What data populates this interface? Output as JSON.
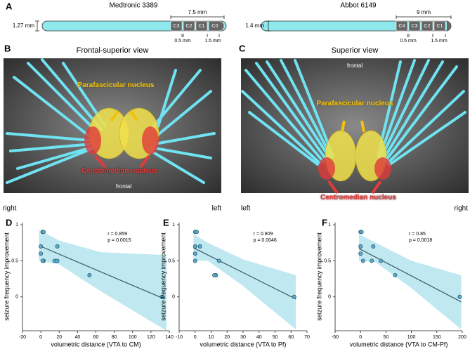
{
  "panel_labels": [
    "A",
    "B",
    "C",
    "D",
    "E",
    "F"
  ],
  "electrodes": [
    {
      "name": "Medtronic 3389",
      "diameter": "1.27 mm",
      "span": "7.5 mm",
      "spacing": "0.5 mm",
      "contact": "1.5 mm",
      "contacts": [
        "C3",
        "C2",
        "C1",
        "C0"
      ]
    },
    {
      "name": "Abbot 6149",
      "diameter": "1.4 mm",
      "span": "9 mm",
      "spacing": "0.5 mm",
      "contact": "1.5 mm",
      "contacts": [
        "C4",
        "C3",
        "C2",
        "C1"
      ]
    }
  ],
  "views": [
    {
      "title": "Frontal-superior view",
      "nucleus_top": "Parafascicular nucleus",
      "nucleus_bottom": "Centromedian nucleus",
      "orientation": "frontal",
      "left_label": "right",
      "right_label": "left"
    },
    {
      "title": "Superior view",
      "nucleus_top": "Parafascicular nucleus",
      "nucleus_bottom": "Centromedian nucleus",
      "orientation": "frontal",
      "left_label": "left",
      "right_label": "right"
    }
  ],
  "chart_data": [
    {
      "type": "scatter",
      "xlabel": "volumetric distance (VTA to CM)",
      "ylabel": "seizure frequency improvement",
      "x": [
        2,
        3,
        0,
        0,
        3,
        2,
        18,
        15,
        18,
        53,
        132
      ],
      "y": [
        0.9,
        0.9,
        0.7,
        0.6,
        0.5,
        0.5,
        0.7,
        0.5,
        0.5,
        0.3,
        0
      ],
      "xlim": [
        -20,
        140
      ],
      "ylim": [
        -0.47,
        1.03
      ],
      "xticks": [
        -20,
        0,
        20,
        40,
        60,
        80,
        100,
        120,
        140
      ],
      "yticks": [
        0,
        0.5,
        1
      ],
      "annotations": [
        "r = 0.859",
        "p = 0.0015"
      ],
      "color": "#5aaccd",
      "fit": {
        "x": [
          0,
          135
        ],
        "y": [
          0.7,
          -0.03
        ]
      },
      "band": {
        "x": [
          -2,
          20,
          65,
          137
        ],
        "upper": [
          0.93,
          0.78,
          0.62,
          0.58
        ],
        "lower": [
          0.5,
          0.45,
          0.08,
          -0.47
        ]
      }
    },
    {
      "type": "scatter",
      "xlabel": "volumetric distance (VTA to Pf)",
      "ylabel": "seizure frequency improvement",
      "x": [
        0,
        1,
        0,
        3,
        0,
        0,
        13,
        12,
        15,
        62
      ],
      "y": [
        0.9,
        0.9,
        0.7,
        0.7,
        0.6,
        0.5,
        0.3,
        0.3,
        0.5,
        0
      ],
      "xlim": [
        -10,
        70
      ],
      "ylim": [
        -0.47,
        1.03
      ],
      "xticks": [
        -10,
        0,
        10,
        20,
        30,
        40,
        50,
        60,
        70
      ],
      "yticks": [
        0,
        0.5,
        1
      ],
      "annotations": [
        "r = 0.809",
        "p = 0.0046"
      ],
      "color": "#5aaccd",
      "fit": {
        "x": [
          -1,
          63
        ],
        "y": [
          0.68,
          -0.03
        ]
      },
      "band": {
        "x": [
          -1,
          8,
          30,
          63
        ],
        "upper": [
          0.87,
          0.75,
          0.52,
          0.3
        ],
        "lower": [
          0.5,
          0.5,
          0.15,
          -0.45
        ]
      }
    },
    {
      "type": "scatter",
      "xlabel": "volumetric distance (VTA to CM-Pf)",
      "ylabel": "seizure frequency improvement",
      "x": [
        0,
        2,
        0,
        0,
        5,
        25,
        22,
        40,
        68,
        195
      ],
      "y": [
        0.9,
        0.9,
        0.7,
        0.6,
        0.5,
        0.7,
        0.5,
        0.5,
        0.3,
        0
      ],
      "xlim": [
        -50,
        200
      ],
      "ylim": [
        -0.47,
        1.03
      ],
      "xticks": [
        -50,
        0,
        50,
        100,
        150,
        200
      ],
      "yticks": [
        0,
        0.5,
        1
      ],
      "annotations": [
        "r = 0.85",
        "p = 0.0018"
      ],
      "color": "#5aaccd",
      "fit": {
        "x": [
          -3,
          198
        ],
        "y": [
          0.67,
          -0.07
        ]
      },
      "band": {
        "x": [
          -3,
          30,
          100,
          198
        ],
        "upper": [
          0.87,
          0.75,
          0.5,
          0.3
        ],
        "lower": [
          0.5,
          0.48,
          0.12,
          -0.45
        ]
      }
    }
  ]
}
